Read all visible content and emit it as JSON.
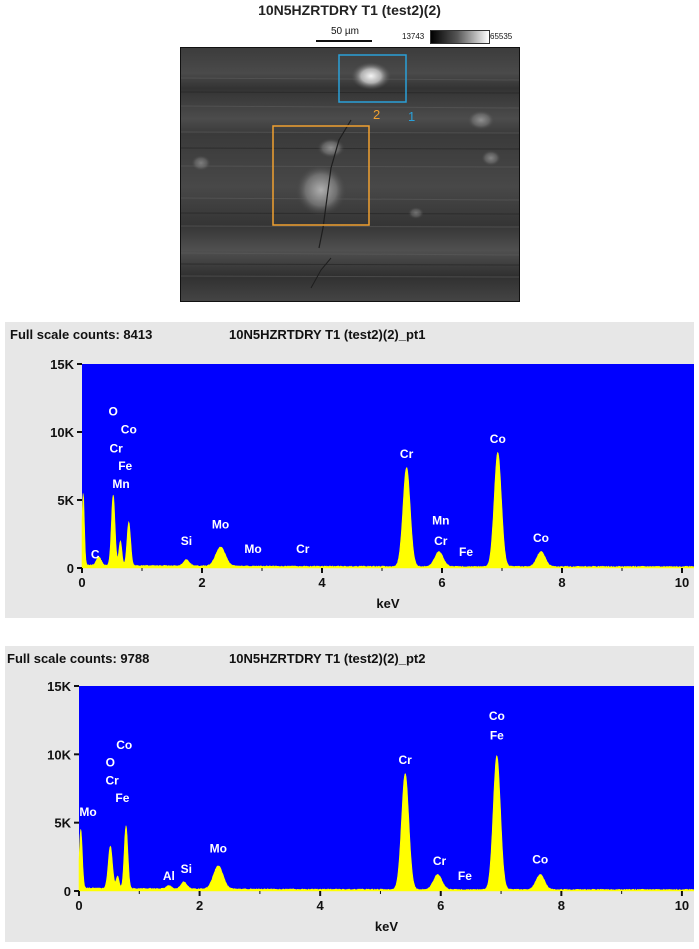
{
  "image_title": "10N5HZRTDRY T1 (test2)(2)",
  "scale_bar_label": "50 µm",
  "gray_min": "13743",
  "gray_max": "65535",
  "region_labels": [
    "2",
    "1"
  ],
  "colors": {
    "plot_bg": "#0000ff",
    "spectrum": "#ffff00",
    "region_1": "#2aa0d8",
    "region_2": "#f0a030",
    "panel_bg": "#e7e7e7"
  },
  "chart_data": [
    {
      "type": "area",
      "title": "10N5HZRTDRY T1 (test2)(2)_pt1",
      "full_scale_label": "Full scale counts: 8413",
      "xlabel": "keV",
      "ylabel": "",
      "xlim": [
        0,
        10.2
      ],
      "ylim": [
        0,
        15000
      ],
      "xticks": [
        0,
        2,
        4,
        6,
        8,
        10
      ],
      "yticks": [
        0,
        5000,
        10000,
        15000
      ],
      "ytick_labels": [
        "0",
        "5K",
        "10K",
        "15K"
      ],
      "peaks": [
        {
          "x": 0.02,
          "y": 5300,
          "w": 0.02
        },
        {
          "x": 0.28,
          "y": 600,
          "w": 0.04
        },
        {
          "x": 0.52,
          "y": 5200,
          "w": 0.03
        },
        {
          "x": 0.64,
          "y": 1800,
          "w": 0.025
        },
        {
          "x": 0.78,
          "y": 3200,
          "w": 0.03
        },
        {
          "x": 1.74,
          "y": 450,
          "w": 0.05
        },
        {
          "x": 2.31,
          "y": 1400,
          "w": 0.08
        },
        {
          "x": 5.41,
          "y": 7300,
          "w": 0.06
        },
        {
          "x": 5.95,
          "y": 1100,
          "w": 0.07
        },
        {
          "x": 6.93,
          "y": 8400,
          "w": 0.06
        },
        {
          "x": 7.65,
          "y": 1100,
          "w": 0.07
        }
      ],
      "annotations": [
        {
          "text": "O",
          "x": 0.52,
          "y": 11200
        },
        {
          "text": "Co",
          "x": 0.78,
          "y": 9900
        },
        {
          "text": "Cr",
          "x": 0.57,
          "y": 8500
        },
        {
          "text": "Fe",
          "x": 0.72,
          "y": 7200
        },
        {
          "text": "Mn",
          "x": 0.65,
          "y": 5900
        },
        {
          "text": "C",
          "x": 0.22,
          "y": 700
        },
        {
          "text": "Si",
          "x": 1.74,
          "y": 1700
        },
        {
          "text": "Mo",
          "x": 2.31,
          "y": 2900
        },
        {
          "text": "Mo",
          "x": 2.85,
          "y": 1100
        },
        {
          "text": "Cr",
          "x": 3.68,
          "y": 1100
        },
        {
          "text": "Cr",
          "x": 5.41,
          "y": 8100
        },
        {
          "text": "Mn",
          "x": 5.98,
          "y": 3200
        },
        {
          "text": "Cr",
          "x": 5.98,
          "y": 1700
        },
        {
          "text": "Fe",
          "x": 6.4,
          "y": 900
        },
        {
          "text": "Co",
          "x": 6.93,
          "y": 9200
        },
        {
          "text": "Co",
          "x": 7.65,
          "y": 1900
        }
      ]
    },
    {
      "type": "area",
      "title": "10N5HZRTDRY T1 (test2)(2)_pt2",
      "full_scale_label": "Full scale counts: 9788",
      "xlabel": "keV",
      "ylabel": "",
      "xlim": [
        0,
        10.2
      ],
      "ylim": [
        0,
        15000
      ],
      "xticks": [
        0,
        2,
        4,
        6,
        8,
        10
      ],
      "yticks": [
        0,
        5000,
        10000,
        15000
      ],
      "ytick_labels": [
        "0",
        "5K",
        "10K",
        "15K"
      ],
      "peaks": [
        {
          "x": 0.03,
          "y": 4300,
          "w": 0.025
        },
        {
          "x": 0.52,
          "y": 3100,
          "w": 0.035
        },
        {
          "x": 0.64,
          "y": 900,
          "w": 0.025
        },
        {
          "x": 0.78,
          "y": 4600,
          "w": 0.03
        },
        {
          "x": 1.49,
          "y": 250,
          "w": 0.04
        },
        {
          "x": 1.74,
          "y": 500,
          "w": 0.05
        },
        {
          "x": 2.31,
          "y": 1700,
          "w": 0.08
        },
        {
          "x": 5.41,
          "y": 8500,
          "w": 0.06
        },
        {
          "x": 5.95,
          "y": 1100,
          "w": 0.07
        },
        {
          "x": 6.93,
          "y": 9800,
          "w": 0.06
        },
        {
          "x": 7.65,
          "y": 1100,
          "w": 0.07
        }
      ],
      "annotations": [
        {
          "text": "Co",
          "x": 0.75,
          "y": 10400
        },
        {
          "text": "O",
          "x": 0.52,
          "y": 9100
        },
        {
          "text": "Cr",
          "x": 0.55,
          "y": 7800
        },
        {
          "text": "Fe",
          "x": 0.72,
          "y": 6500
        },
        {
          "text": "Mo",
          "x": 0.15,
          "y": 5500
        },
        {
          "text": "Al",
          "x": 1.49,
          "y": 800
        },
        {
          "text": "Si",
          "x": 1.78,
          "y": 1300
        },
        {
          "text": "Mo",
          "x": 2.31,
          "y": 2800
        },
        {
          "text": "Cr",
          "x": 5.41,
          "y": 9300
        },
        {
          "text": "Cr",
          "x": 5.98,
          "y": 1900
        },
        {
          "text": "Fe",
          "x": 6.4,
          "y": 800
        },
        {
          "text": "Co",
          "x": 6.93,
          "y": 12500
        },
        {
          "text": "Fe",
          "x": 6.93,
          "y": 11100
        },
        {
          "text": "Co",
          "x": 7.65,
          "y": 2000
        }
      ]
    }
  ]
}
